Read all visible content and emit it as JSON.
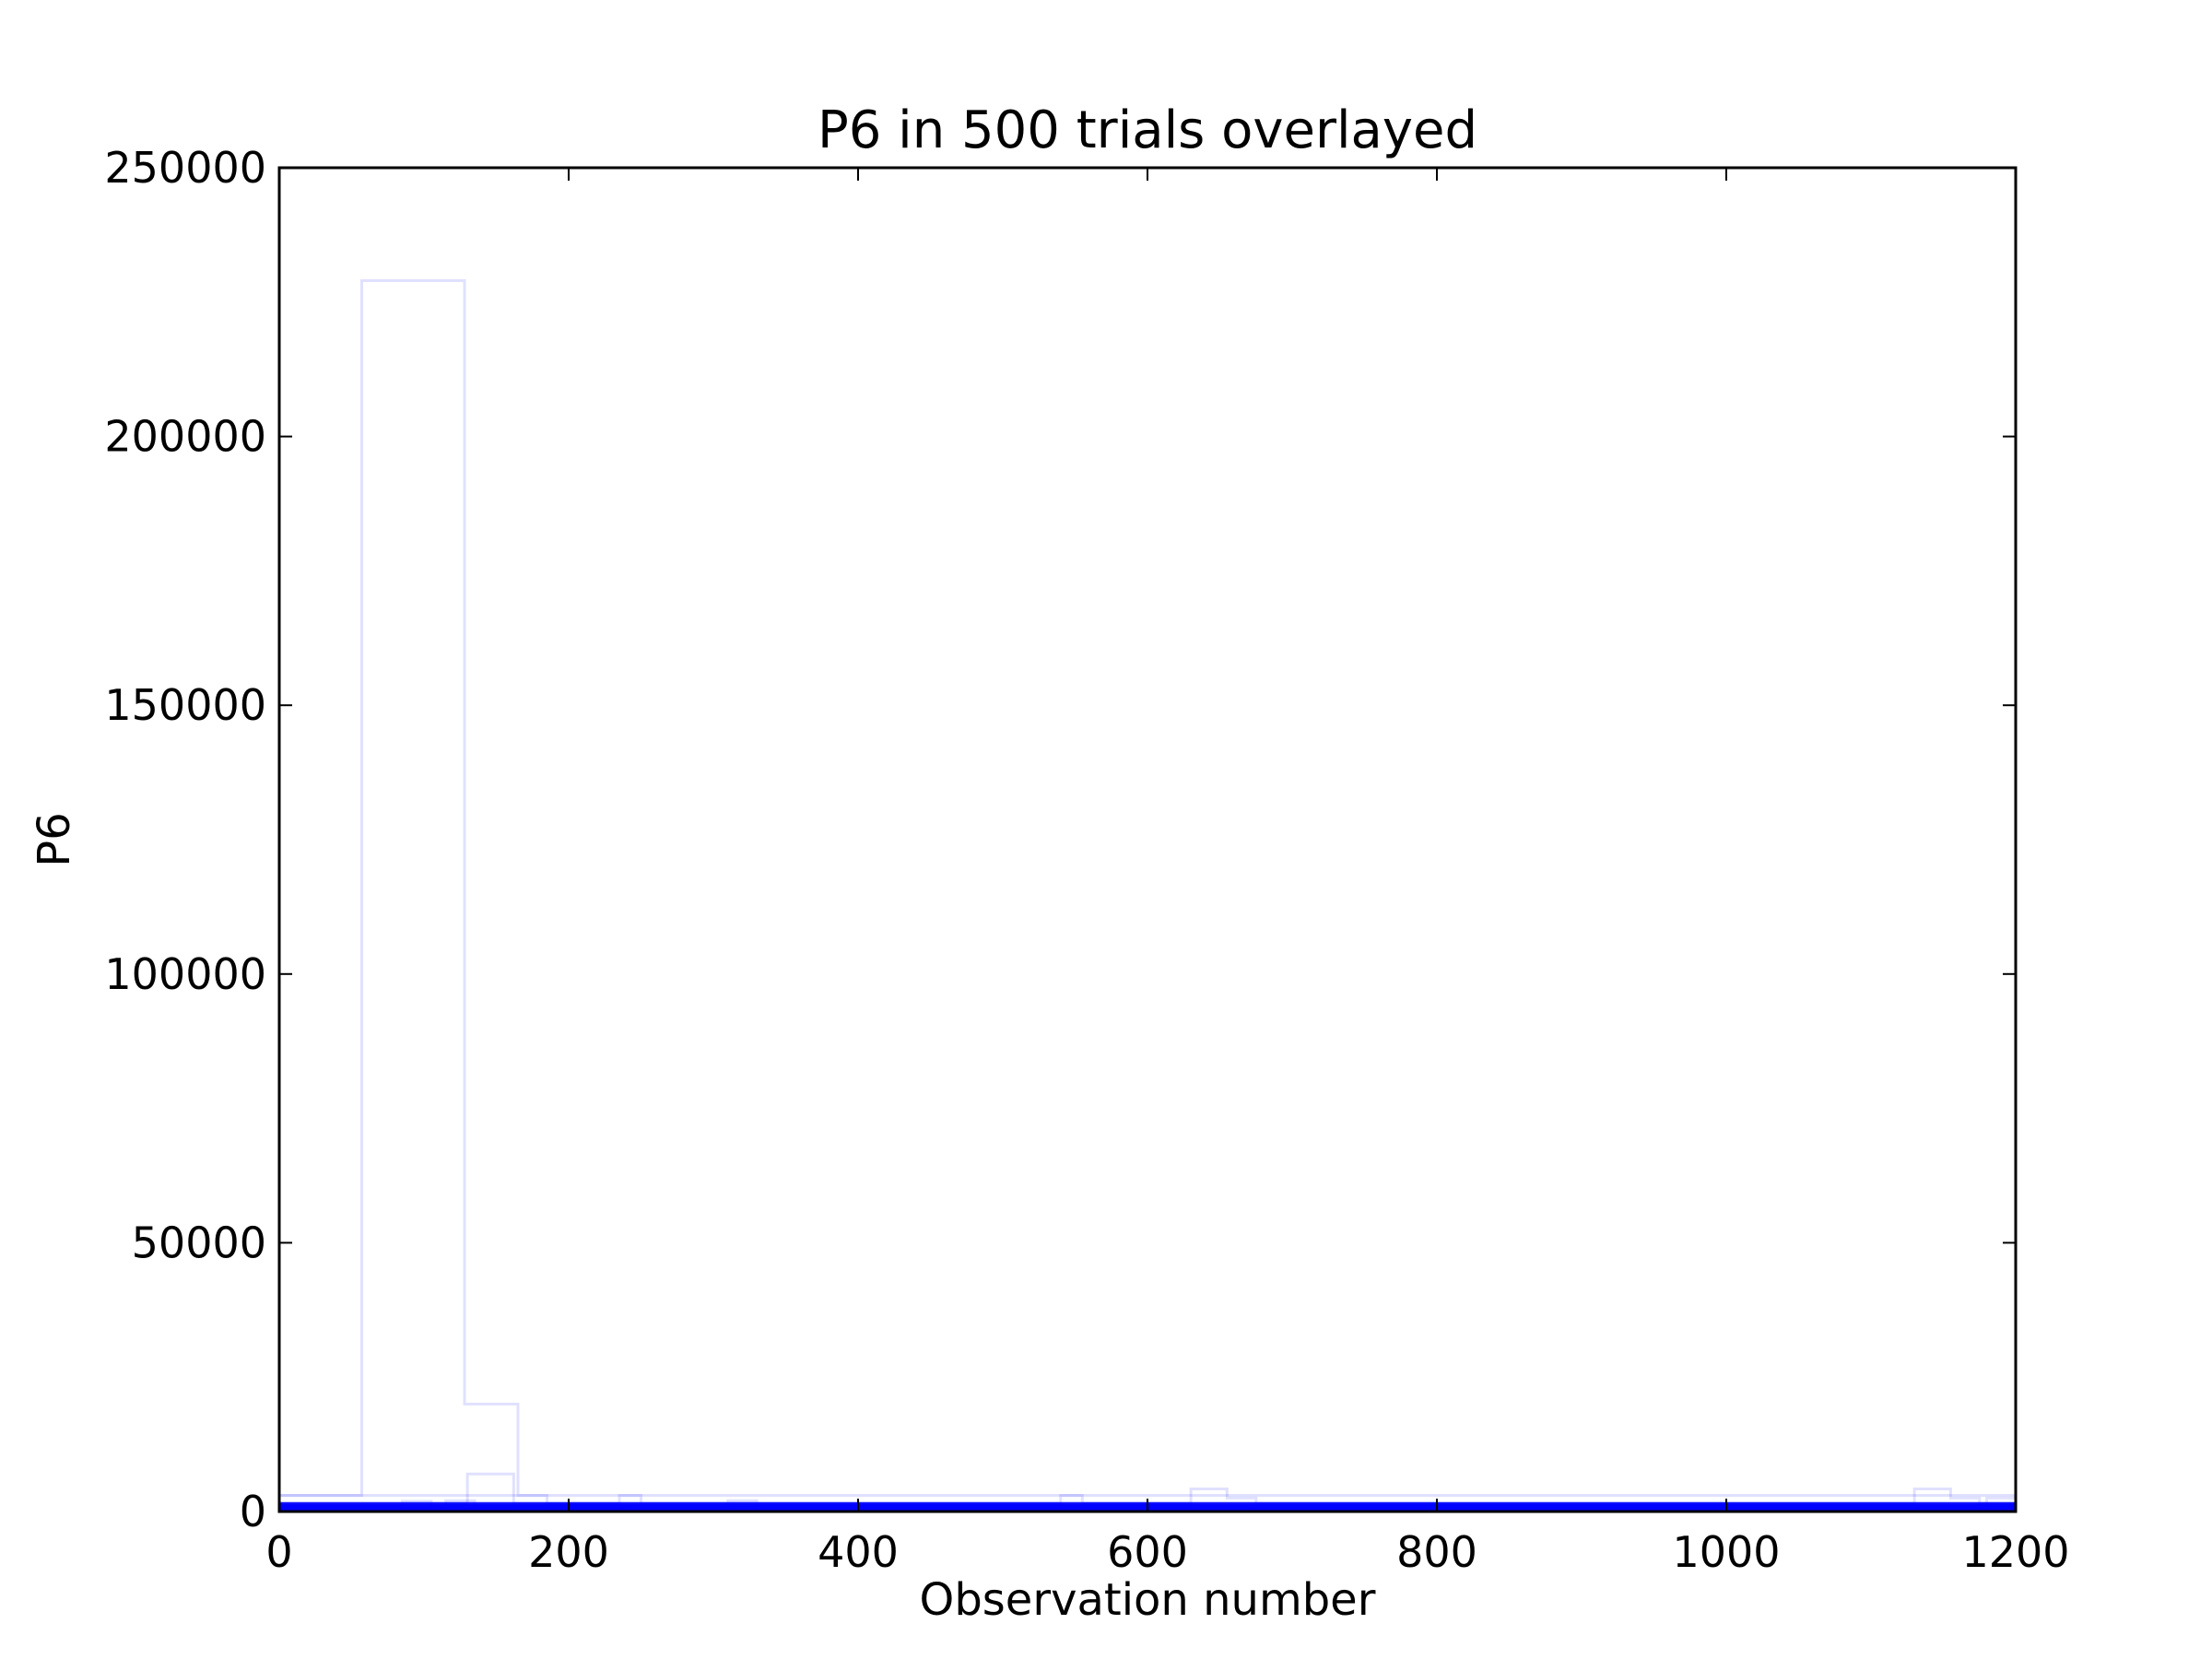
{
  "chart_data": {
    "type": "line",
    "title": "P6 in 500 trials overlayed",
    "xlabel": "Observation number",
    "ylabel": "P6",
    "xlim": [
      0,
      1200
    ],
    "ylim": [
      0,
      250000
    ],
    "xticks": [
      0,
      200,
      400,
      600,
      800,
      1000,
      1200
    ],
    "yticks": [
      0,
      50000,
      100000,
      150000,
      200000,
      250000
    ],
    "xtick_labels": [
      "0",
      "200",
      "400",
      "600",
      "800",
      "1000",
      "1200"
    ],
    "ytick_labels": [
      "0",
      "50000",
      "100000",
      "150000",
      "200000",
      "250000"
    ],
    "grid": false,
    "line_color": "#0000ff",
    "series_opacity": 0.1,
    "series": [
      {
        "x": [
          0,
          57,
          57,
          128,
          128,
          165,
          165,
          185,
          185,
          1200
        ],
        "y": [
          3000,
          3000,
          229000,
          229000,
          20000,
          20000,
          3000,
          3000,
          1500,
          1500
        ]
      },
      {
        "x": [
          0,
          130,
          130,
          162,
          162,
          235,
          235,
          250,
          250,
          540,
          540,
          555,
          555,
          630,
          630,
          655,
          655,
          675,
          675,
          1130,
          1130,
          1155,
          1155,
          1175,
          1175,
          1200
        ],
        "y": [
          1500,
          1500,
          7000,
          7000,
          1500,
          1500,
          3000,
          3000,
          1500,
          1500,
          3000,
          3000,
          1500,
          1500,
          4200,
          4200,
          2500,
          2500,
          1500,
          1500,
          4200,
          4200,
          2500,
          2500,
          1500,
          1500
        ]
      },
      {
        "x": [
          0,
          1200
        ],
        "y": [
          3000,
          3000
        ]
      },
      {
        "x": [
          0,
          85,
          85,
          105,
          105,
          115,
          115,
          135,
          135,
          1200
        ],
        "y": [
          800,
          800,
          1900,
          1900,
          800,
          800,
          2000,
          2000,
          800,
          800
        ]
      },
      {
        "x": [
          0,
          310,
          310,
          330,
          330,
          1180,
          1180,
          1200
        ],
        "y": [
          600,
          600,
          2000,
          2000,
          600,
          600,
          2500,
          2500
        ]
      }
    ],
    "dense_band": {
      "band_lines": [
        {
          "x": [
            0,
            1200
          ],
          "y": [
            200,
            200
          ]
        },
        {
          "x": [
            0,
            1200
          ],
          "y": [
            500,
            500
          ]
        },
        {
          "x": [
            0,
            1200
          ],
          "y": [
            800,
            800
          ]
        },
        {
          "x": [
            0,
            1200
          ],
          "y": [
            1100,
            1100
          ]
        },
        {
          "x": [
            0,
            1200
          ],
          "y": [
            1400,
            1400
          ]
        }
      ]
    }
  }
}
